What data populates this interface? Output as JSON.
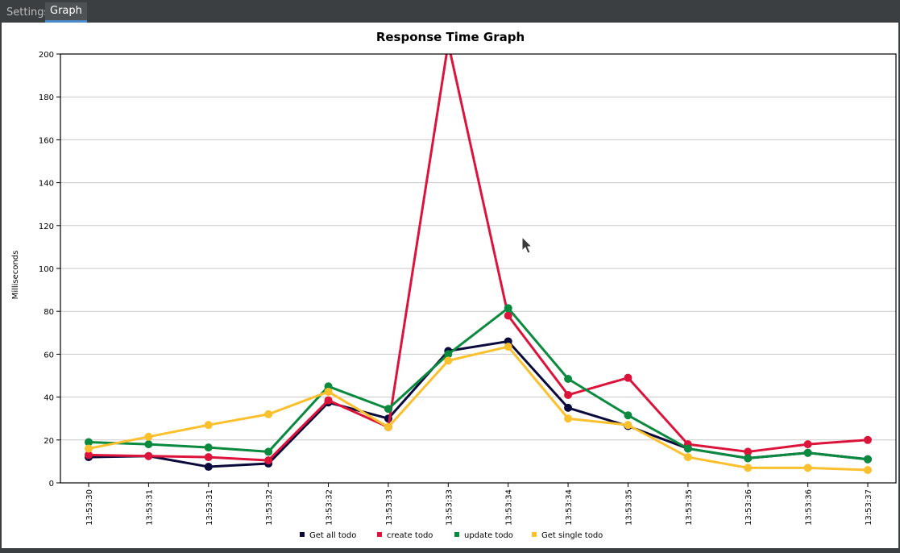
{
  "tabs": [
    {
      "label": "Settings",
      "active": false
    },
    {
      "label": "Graph",
      "active": true
    }
  ],
  "chart_data": {
    "type": "line",
    "title": "Response Time Graph",
    "xlabel": "",
    "ylabel": "Milliseconds",
    "ylim": [
      0,
      200
    ],
    "yticks": [
      0,
      20,
      40,
      60,
      80,
      100,
      120,
      140,
      160,
      180,
      200
    ],
    "grid": true,
    "legend_position": "bottom",
    "categories": [
      "13:53:30",
      "13:53:31",
      "13:53:31",
      "13:53:32",
      "13:53:32",
      "13:53:33",
      "13:53:33",
      "13:53:34",
      "13:53:34",
      "13:53:35",
      "13:53:35",
      "13:53:36",
      "13:53:36",
      "13:53:37"
    ],
    "series": [
      {
        "name": "Get all todo",
        "color": "#0b0a3c",
        "values": [
          12,
          12.5,
          7.5,
          9,
          37.5,
          30,
          61.5,
          66,
          35,
          26.5,
          16,
          11.5,
          14,
          11
        ]
      },
      {
        "name": "create todo",
        "color": "#dc143c",
        "values": [
          13,
          12.5,
          12,
          10.5,
          38.5,
          26,
          205,
          78,
          41,
          49,
          18,
          14.5,
          18,
          20
        ]
      },
      {
        "name": "update todo",
        "color": "#0a8a3f",
        "values": [
          19,
          18,
          16.5,
          14.5,
          45,
          34.5,
          60,
          81.5,
          48.5,
          31.5,
          16,
          11.5,
          14,
          11
        ]
      },
      {
        "name": "Get single todo",
        "color": "#fbc02d",
        "values": [
          16,
          21.5,
          27,
          32,
          42.5,
          26,
          57,
          63.5,
          30,
          27,
          12,
          7,
          7,
          6
        ]
      }
    ]
  }
}
